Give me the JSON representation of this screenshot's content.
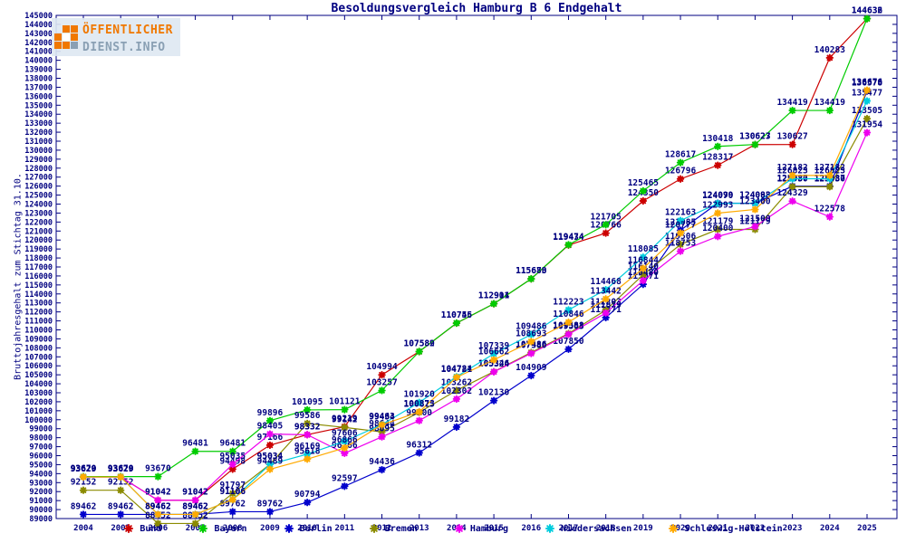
{
  "logo": {
    "line1": "ÖFFENTLICHER",
    "line2": "DIENST.INFO",
    "orange": "#f07800",
    "gray": "#8aa0b4"
  },
  "title": "Besoldungsvergleich Hamburg B 6 Endgehalt",
  "ylabel": "Bruttojahresgehalt zum Stichtag 31.10.",
  "axis_color": "#000080",
  "chart_data": {
    "type": "line",
    "title": "Besoldungsvergleich Hamburg B 6 Endgehalt",
    "xlabel": "",
    "ylabel": "Bruttojahresgehalt zum Stichtag 31.10.",
    "x": [
      2004,
      2005,
      2006,
      2007,
      2008,
      2009,
      2010,
      2011,
      2012,
      2013,
      2014,
      2015,
      2016,
      2017,
      2018,
      2019,
      2020,
      2021,
      2022,
      2023,
      2024,
      2025
    ],
    "ylim": [
      89000,
      145000
    ],
    "ytick_step": 1000,
    "grid": false,
    "legend_position": "bottom",
    "point_labels": true,
    "series": [
      {
        "name": "Bund",
        "color": "#cc0000",
        "values": [
          93629,
          93629,
          91042,
          91042,
          94498,
          97166,
          98332,
          99219,
          104994,
          107582,
          110746,
          112904,
          115673,
          119434,
          120766,
          124350,
          126796,
          128317,
          130623,
          130627,
          140283,
          144636
        ]
      },
      {
        "name": "Bayern",
        "color": "#00cc00",
        "values": [
          93670,
          93670,
          93670,
          96481,
          96481,
          99896,
          101095,
          101121,
          103257,
          107589,
          110755,
          112911,
          115680,
          119474,
          121705,
          125465,
          128617,
          130418,
          130627,
          134419,
          134419,
          144632
        ]
      },
      {
        "name": "Berlin",
        "color": "#0000cc",
        "values": [
          89462,
          89462,
          89462,
          89462,
          89762,
          89762,
          90794,
          92597,
          94436,
          96312,
          99182,
          102130,
          104909,
          107850,
          111371,
          115071,
          121085,
          124099,
          124093,
          125987,
          125987,
          136578
        ]
      },
      {
        "name": "Bremen",
        "color": "#8b8b00",
        "values": [
          92152,
          92152,
          88452,
          88452,
          91797,
          95034,
          99586,
          99142,
          98644,
          100825,
          103262,
          105346,
          107486,
          109588,
          112203,
          116140,
          119506,
          121179,
          121179,
          125930,
          125930,
          133505
        ]
      },
      {
        "name": "Hamburg",
        "color": "#ee00ee",
        "values": [
          93629,
          93629,
          91042,
          91042,
          95035,
          98405,
          98332,
          96266,
          98095,
          99900,
          102302,
          105324,
          107380,
          109503,
          111879,
          115480,
          118753,
          120400,
          121500,
          124329,
          122578,
          131954
        ]
      },
      {
        "name": "Niedersachsen",
        "color": "#00ccdd",
        "values": [
          93629,
          93629,
          89462,
          89462,
          91106,
          95034,
          96169,
          97606,
          99463,
          101920,
          104784,
          107339,
          109486,
          112223,
          114468,
          118085,
          122163,
          124070,
          124088,
          126823,
          126823,
          135477
        ]
      },
      {
        "name": "Schleswig-Holstein",
        "color": "#ffaa00",
        "values": [
          93629,
          93629,
          89462,
          89462,
          91106,
          94489,
          95618,
          96866,
          99434,
          100873,
          104721,
          106662,
          108693,
          110846,
          113442,
          116844,
          120777,
          122993,
          123400,
          127182,
          127182,
          136676
        ]
      }
    ]
  }
}
